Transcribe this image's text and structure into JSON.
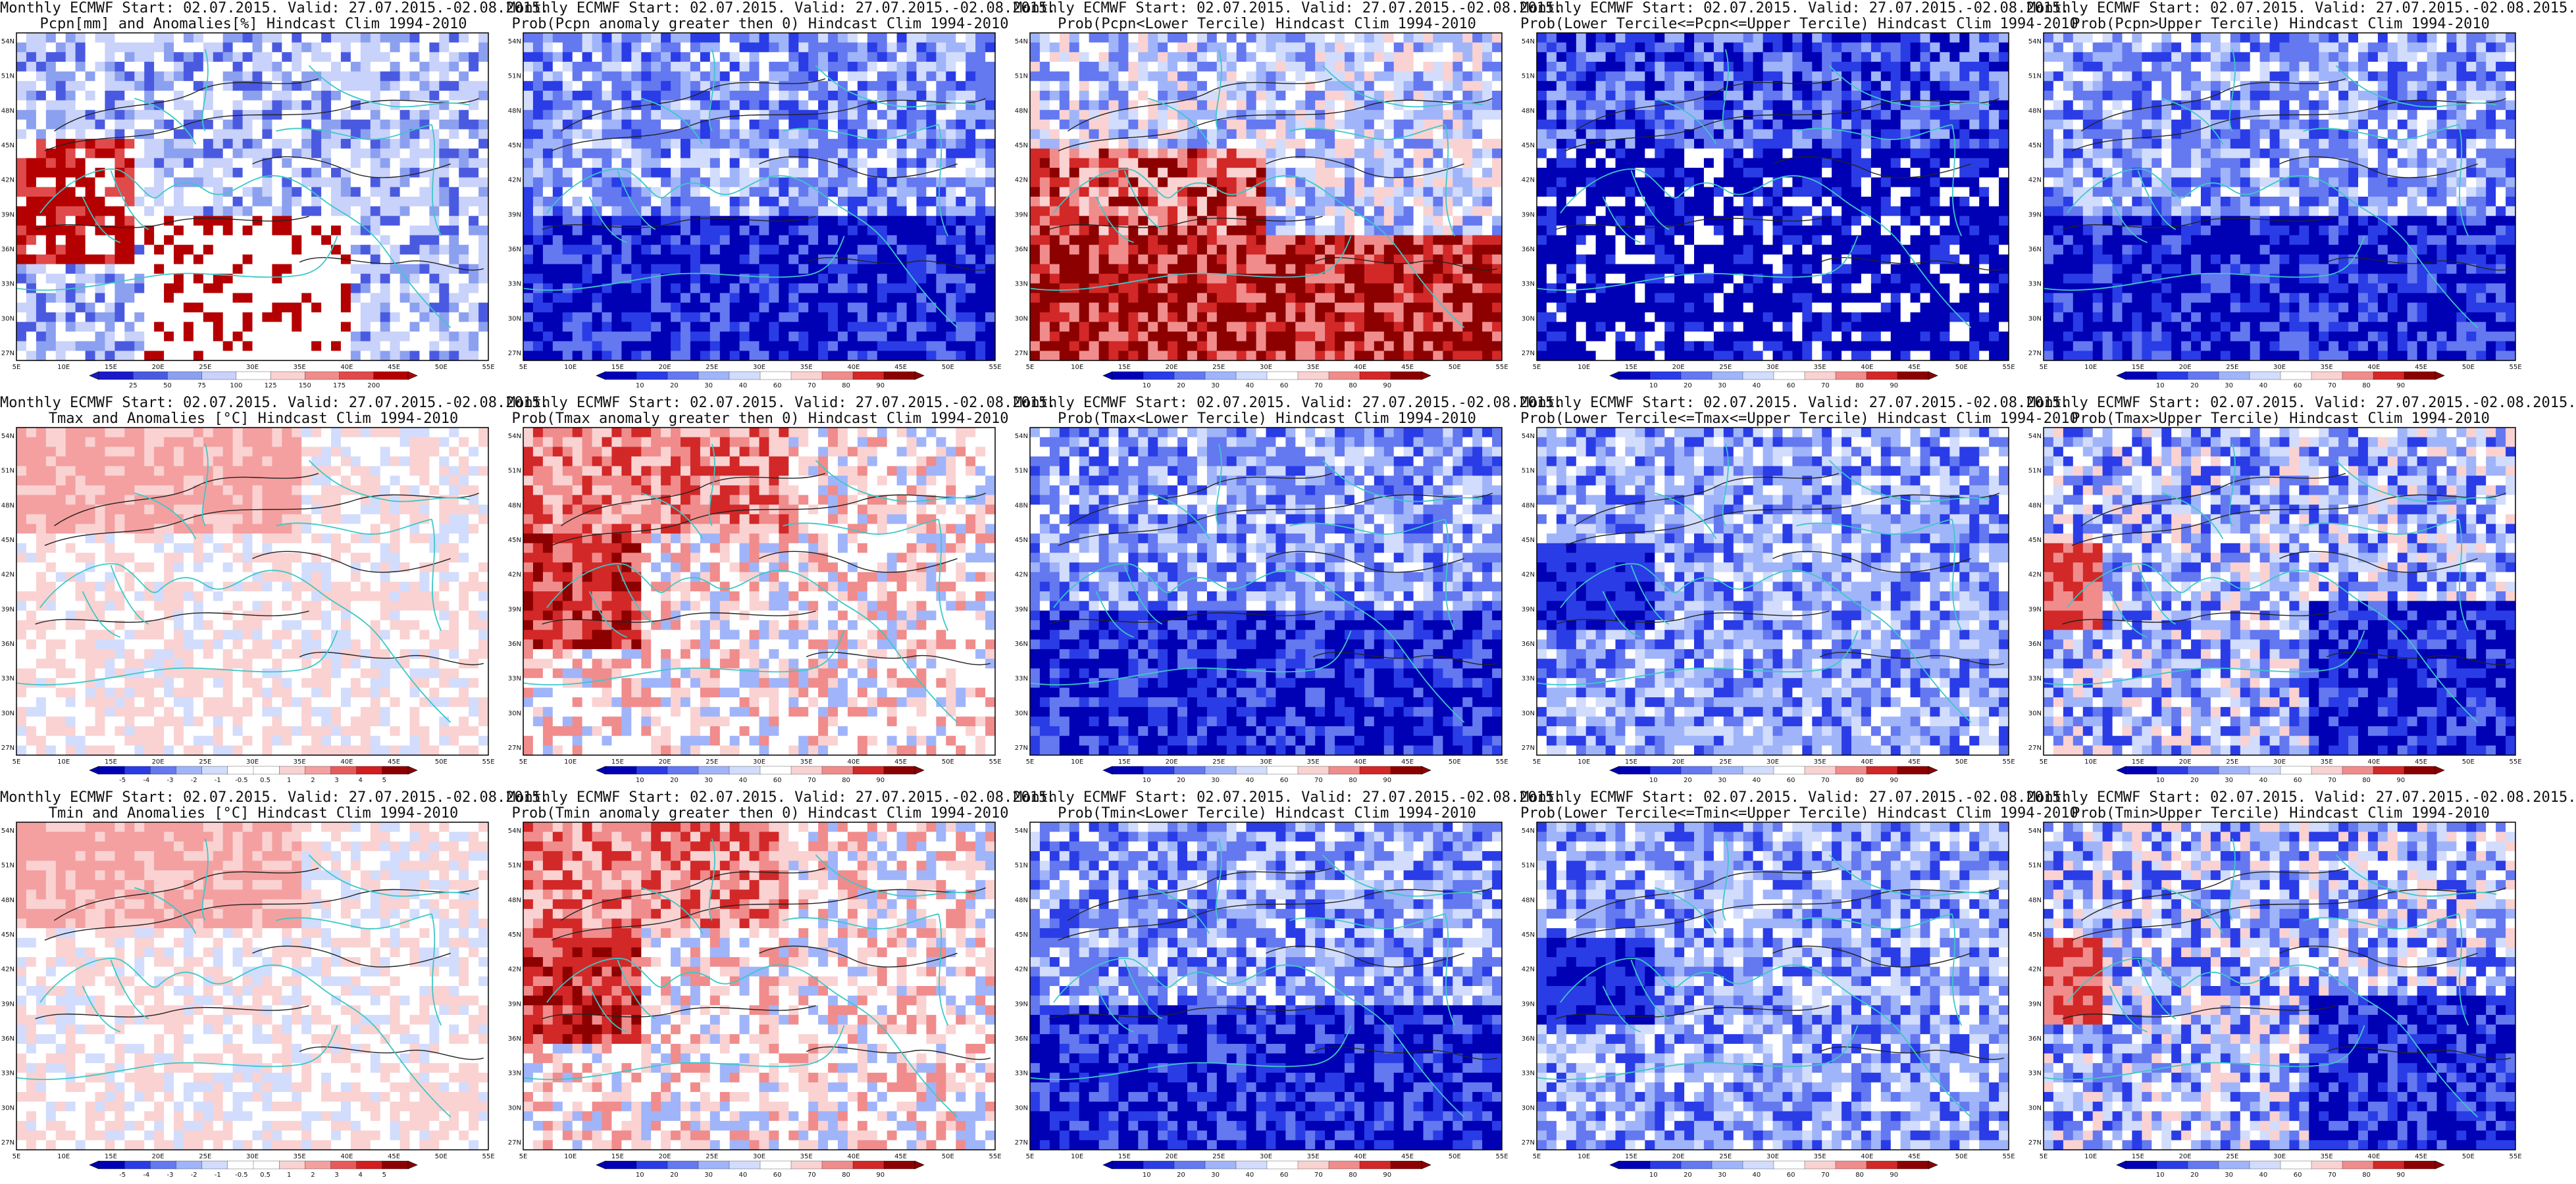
{
  "panels": [
    {
      "line1": "Monthly ECMWF Start: 02.07.2015. Valid: 27.07.2015.-02.08.2015.",
      "line2": "Pcpn[mm] and Anomalies[%] Hindcast Clim 1994-2010",
      "kind": "precip_anom",
      "colorbar": {
        "labels": [
          "25",
          "50",
          "75",
          "100",
          "125",
          "150",
          "175",
          "200"
        ]
      }
    },
    {
      "line1": "Monthly ECMWF Start: 02.07.2015. Valid: 27.07.2015.-02.08.2015.",
      "line2": "Prob(Pcpn anomaly greater then 0) Hindcast Clim 1994-2010",
      "kind": "blue_dominant",
      "colorbar": {
        "labels": [
          "10",
          "20",
          "30",
          "40",
          "60",
          "70",
          "80",
          "90"
        ]
      }
    },
    {
      "line1": "Monthly ECMWF Start: 02.07.2015. Valid: 27.07.2015.-02.08.2015.",
      "line2": "Prob(Pcpn<Lower Tercile) Hindcast Clim 1994-2010",
      "kind": "red_south",
      "colorbar": {
        "labels": [
          "10",
          "20",
          "30",
          "40",
          "60",
          "70",
          "80",
          "90"
        ]
      }
    },
    {
      "line1": "Monthly ECMWF Start: 02.07.2015. Valid: 27.07.2015.-02.08.2015.",
      "line2": "Prob(Lower Tercile<=Pcpn<=Upper Tercile) Hindcast Clim 1994-2010",
      "kind": "deep_blue",
      "colorbar": {
        "labels": [
          "10",
          "20",
          "30",
          "40",
          "60",
          "70",
          "80",
          "90"
        ]
      }
    },
    {
      "line1": "Monthly ECMWF Start: 02.07.2015. Valid: 27.07.2015.-02.08.2015.",
      "line2": "Prob(Pcpn>Upper Tercile) Hindcast Clim 1994-2010",
      "kind": "blue_dominant",
      "colorbar": {
        "labels": [
          "10",
          "20",
          "30",
          "40",
          "60",
          "70",
          "80",
          "90"
        ]
      }
    },
    {
      "line1": "Monthly ECMWF Start: 02.07.2015. Valid: 27.07.2015.-02.08.2015.",
      "line2": "Tmax and Anomalies [°C] Hindcast Clim 1994-2010",
      "kind": "light_red",
      "colorbar": {
        "labels": [
          "-5",
          "-4",
          "-3",
          "-2",
          "-1",
          "-0.5",
          "0.5",
          "1",
          "2",
          "3",
          "4",
          "5"
        ]
      }
    },
    {
      "line1": "Monthly ECMWF Start: 02.07.2015. Valid: 27.07.2015.-02.08.2015.",
      "line2": "Prob(Tmax anomaly greater then 0) Hindcast Clim 1994-2010",
      "kind": "red_west",
      "colorbar": {
        "labels": [
          "10",
          "20",
          "30",
          "40",
          "60",
          "70",
          "80",
          "90"
        ]
      }
    },
    {
      "line1": "Monthly ECMWF Start: 02.07.2015. Valid: 27.07.2015.-02.08.2015.",
      "line2": "Prob(Tmax<Lower Tercile) Hindcast Clim 1994-2010",
      "kind": "blue_dominant",
      "colorbar": {
        "labels": [
          "10",
          "20",
          "30",
          "40",
          "60",
          "70",
          "80",
          "90"
        ]
      }
    },
    {
      "line1": "Monthly ECMWF Start: 02.07.2015. Valid: 27.07.2015.-02.08.2015.",
      "line2": "Prob(Lower Tercile<=Tmax<=Upper Tercile) Hindcast Clim 1994-2010",
      "kind": "mixed_blue",
      "colorbar": {
        "labels": [
          "10",
          "20",
          "30",
          "40",
          "60",
          "70",
          "80",
          "90"
        ]
      }
    },
    {
      "line1": "Monthly ECMWF Start: 02.07.2015. Valid: 27.07.2015.-02.08.2015.",
      "line2": "Prob(Tmax>Upper Tercile) Hindcast Clim 1994-2010",
      "kind": "mixed_italy",
      "colorbar": {
        "labels": [
          "10",
          "20",
          "30",
          "40",
          "60",
          "70",
          "80",
          "90"
        ]
      }
    },
    {
      "line1": "Monthly ECMWF Start: 02.07.2015. Valid: 27.07.2015.-02.08.2015.",
      "line2": "Tmin and Anomalies [°C] Hindcast Clim 1994-2010",
      "kind": "light_red",
      "colorbar": {
        "labels": [
          "-5",
          "-4",
          "-3",
          "-2",
          "-1",
          "-0.5",
          "0.5",
          "1",
          "2",
          "3",
          "4",
          "5"
        ]
      }
    },
    {
      "line1": "Monthly ECMWF Start: 02.07.2015. Valid: 27.07.2015.-02.08.2015.",
      "line2": "Prob(Tmin anomaly greater then 0) Hindcast Clim 1994-2010",
      "kind": "red_west",
      "colorbar": {
        "labels": [
          "10",
          "20",
          "30",
          "40",
          "60",
          "70",
          "80",
          "90"
        ]
      }
    },
    {
      "line1": "Monthly ECMWF Start: 02.07.2015. Valid: 27.07.2015.-02.08.2015.",
      "line2": "Prob(Tmin<Lower Tercile) Hindcast Clim 1994-2010",
      "kind": "blue_dominant",
      "colorbar": {
        "labels": [
          "10",
          "20",
          "30",
          "40",
          "60",
          "70",
          "80",
          "90"
        ]
      }
    },
    {
      "line1": "Monthly ECMWF Start: 02.07.2015. Valid: 27.07.2015.-02.08.2015.",
      "line2": "Prob(Lower Tercile<=Tmin<=Upper Tercile) Hindcast Clim 1994-2010",
      "kind": "mixed_blue",
      "colorbar": {
        "labels": [
          "10",
          "20",
          "30",
          "40",
          "60",
          "70",
          "80",
          "90"
        ]
      }
    },
    {
      "line1": "Monthly ECMWF Start: 02.07.2015. Valid: 27.07.2015.-02.08.2015.",
      "line2": "Prob(Tmin>Upper Tercile) Hindcast Clim 1994-2010",
      "kind": "mixed_italy",
      "colorbar": {
        "labels": [
          "10",
          "20",
          "30",
          "40",
          "60",
          "70",
          "80",
          "90"
        ]
      }
    }
  ],
  "lon_labels": [
    "5E",
    "10E",
    "15E",
    "20E",
    "25E",
    "30E",
    "35E",
    "40E",
    "45E",
    "50E",
    "55E"
  ],
  "lat_labels": [
    "54N",
    "51N",
    "48N",
    "45N",
    "42N",
    "39N",
    "36N",
    "33N",
    "30N",
    "27N"
  ],
  "colors": {
    "precip_scale": [
      "#1a1ac8",
      "#4a5ae0",
      "#8ca0f0",
      "#c8d2fa",
      "#ffffff",
      "#fad2d2",
      "#f08c8c",
      "#e04a4a",
      "#b40000"
    ],
    "prob_scale": [
      "#0000b4",
      "#2a3ce6",
      "#6478f0",
      "#a0b4fa",
      "#d2dcfc",
      "#ffffff",
      "#fad2d2",
      "#f08c8c",
      "#d22828",
      "#8c0000"
    ],
    "temp_scale": [
      "#0000b4",
      "#2a3ce6",
      "#6478f0",
      "#a0b4fa",
      "#d2dcfc",
      "#ffffff",
      "#ffffff",
      "#fad2d2",
      "#f4a0a0",
      "#e85a5a",
      "#d21e1e",
      "#8c0000"
    ],
    "coast": "#3cc8c8",
    "contour": "#222222",
    "frame": "#000000"
  }
}
